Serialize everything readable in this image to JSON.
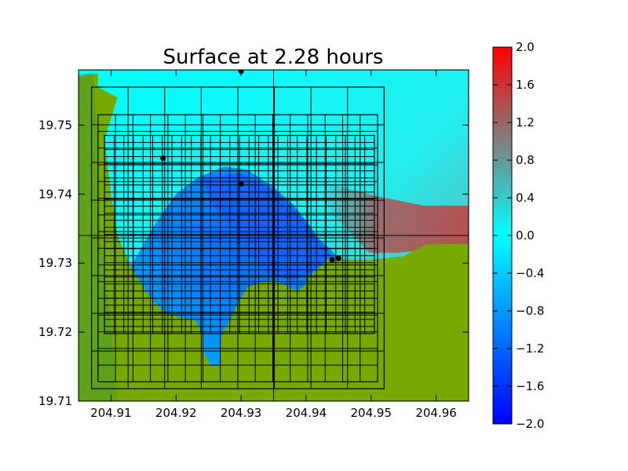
{
  "chart_data": {
    "type": "heatmap",
    "title": "Surface at 2.28 hours",
    "xlabel": "",
    "ylabel": "",
    "xlim": [
      204.905,
      204.965
    ],
    "ylim": [
      19.71,
      19.758
    ],
    "x_ticks": [
      204.91,
      204.92,
      204.93,
      204.94,
      204.95,
      204.96
    ],
    "x_tick_labels": [
      "204.91",
      "204.92",
      "204.93",
      "204.94",
      "204.95",
      "204.96"
    ],
    "y_ticks": [
      19.71,
      19.72,
      19.73,
      19.74,
      19.75
    ],
    "y_tick_labels": [
      "19.71",
      "19.72",
      "19.73",
      "19.74",
      "19.75"
    ],
    "colorbar": {
      "range": [
        -2.0,
        2.0
      ],
      "ticks": [
        2.0,
        1.6,
        1.2,
        0.8,
        0.4,
        0.0,
        -0.4,
        -0.8,
        -1.2,
        -1.6,
        -2.0
      ],
      "tick_labels": [
        "2.0",
        "1.6",
        "1.2",
        "0.8",
        "0.4",
        "0.0",
        "−0.4",
        "−0.8",
        "−1.2",
        "−1.6",
        "−2.0"
      ],
      "colors": [
        "#0000ff",
        "#00ffff",
        "#ff0000"
      ]
    },
    "colors": {
      "land": "#77aa00",
      "land_dark": "#4f9a1c",
      "ocean": "#00ffff",
      "bay_deep": "#1a6cff",
      "bay_mid": "#0099ff",
      "grid_lines": "#000000"
    },
    "grid_patches": [
      {
        "level": 1,
        "extent": [
          204.905,
          204.965,
          19.71,
          19.758
        ],
        "nx": 2,
        "ny": 2
      },
      {
        "level": 2,
        "extent": [
          204.907,
          204.952,
          19.7118,
          19.7555
        ],
        "nx": 8,
        "ny": 8
      },
      {
        "level": 3,
        "extent": [
          204.908,
          204.951,
          19.7128,
          19.7515
        ],
        "nx": 16,
        "ny": 16
      },
      {
        "level": 4,
        "extent": [
          204.909,
          204.9505,
          19.7198,
          19.7485
        ],
        "nx": 28,
        "ny": 28
      }
    ],
    "gauges": [
      {
        "x": 204.93,
        "y": 19.7578
      },
      {
        "x": 204.918,
        "y": 19.7452
      },
      {
        "x": 204.93,
        "y": 19.7415
      },
      {
        "x": 204.944,
        "y": 19.7305
      },
      {
        "x": 204.945,
        "y": 19.7307
      }
    ],
    "land_boundary": [
      [
        204.905,
        19.71
      ],
      [
        204.905,
        19.757
      ],
      [
        204.908,
        19.7575
      ],
      [
        204.908,
        19.7555
      ],
      [
        204.911,
        19.754
      ],
      [
        204.909,
        19.748
      ],
      [
        204.91,
        19.74
      ],
      [
        204.911,
        19.734
      ],
      [
        204.913,
        19.7295
      ],
      [
        204.915,
        19.7265
      ],
      [
        204.9165,
        19.7245
      ],
      [
        204.9185,
        19.7227
      ],
      [
        204.923,
        19.7217
      ],
      [
        204.924,
        19.7198
      ],
      [
        204.924,
        19.7175
      ],
      [
        204.9255,
        19.715
      ],
      [
        204.9268,
        19.7153
      ],
      [
        204.927,
        19.7195
      ],
      [
        204.9285,
        19.7222
      ],
      [
        204.9295,
        19.7242
      ],
      [
        204.931,
        19.7265
      ],
      [
        204.933,
        19.7272
      ],
      [
        204.935,
        19.7275
      ],
      [
        204.937,
        19.7267
      ],
      [
        204.9387,
        19.726
      ],
      [
        204.9395,
        19.7265
      ],
      [
        204.941,
        19.7285
      ],
      [
        204.9425,
        19.7297
      ],
      [
        204.9435,
        19.7307
      ],
      [
        204.947,
        19.7305
      ],
      [
        204.95,
        19.7305
      ],
      [
        204.955,
        19.731
      ],
      [
        204.9585,
        19.7327
      ],
      [
        204.965,
        19.7328
      ],
      [
        204.965,
        19.71
      ]
    ],
    "bay_boundary": [
      [
        204.913,
        19.7295
      ],
      [
        204.917,
        19.736
      ],
      [
        204.92,
        19.74
      ],
      [
        204.9235,
        19.7425
      ],
      [
        204.9275,
        19.744
      ],
      [
        204.931,
        19.7435
      ],
      [
        204.935,
        19.741
      ],
      [
        204.938,
        19.7385
      ],
      [
        204.9405,
        19.7355
      ],
      [
        204.942,
        19.7335
      ],
      [
        204.944,
        19.7318
      ],
      [
        204.945,
        19.7305
      ],
      [
        204.9435,
        19.7307
      ],
      [
        204.9425,
        19.7297
      ],
      [
        204.941,
        19.7285
      ],
      [
        204.9395,
        19.7265
      ],
      [
        204.9387,
        19.726
      ],
      [
        204.937,
        19.7267
      ],
      [
        204.935,
        19.7275
      ],
      [
        204.933,
        19.7272
      ],
      [
        204.931,
        19.7265
      ],
      [
        204.9295,
        19.7242
      ],
      [
        204.9285,
        19.7222
      ],
      [
        204.927,
        19.7195
      ],
      [
        204.9268,
        19.7153
      ],
      [
        204.9255,
        19.715
      ],
      [
        204.924,
        19.7175
      ],
      [
        204.924,
        19.7198
      ],
      [
        204.923,
        19.7217
      ],
      [
        204.9185,
        19.7227
      ],
      [
        204.9165,
        19.7245
      ],
      [
        204.915,
        19.7265
      ]
    ],
    "deep_region": [
      [
        204.924,
        19.7423
      ],
      [
        204.93,
        19.743
      ],
      [
        204.935,
        19.7405
      ],
      [
        204.939,
        19.737
      ],
      [
        204.942,
        19.733
      ],
      [
        204.944,
        19.7312
      ],
      [
        204.941,
        19.7288
      ],
      [
        204.938,
        19.7275
      ],
      [
        204.934,
        19.7285
      ],
      [
        204.9315,
        19.731
      ],
      [
        204.929,
        19.735
      ],
      [
        204.9255,
        19.7385
      ]
    ]
  }
}
